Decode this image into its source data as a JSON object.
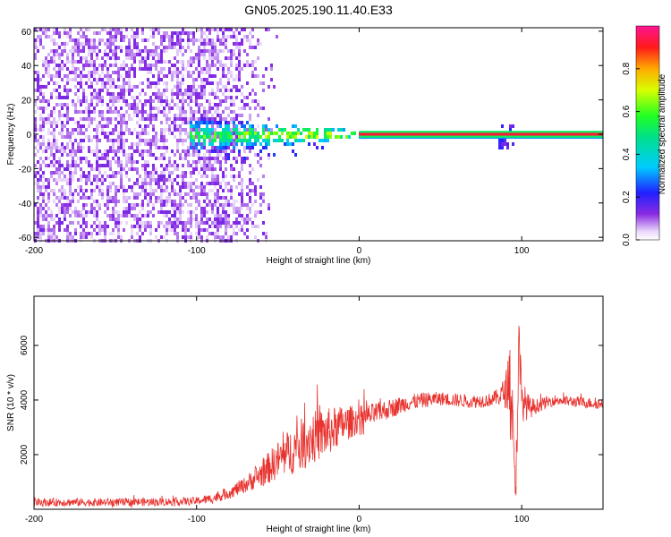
{
  "title": "GN05.2025.190.11.40.E33",
  "chart_data": [
    {
      "type": "heatmap",
      "xlabel": "Height of straight line (km)",
      "ylabel": "Frequency (Hz)",
      "xlim": [
        -200,
        150
      ],
      "ylim": [
        -62,
        62
      ],
      "x_ticks": [
        -200,
        -100,
        0,
        100
      ],
      "y_ticks": [
        -60,
        -40,
        -20,
        0,
        20,
        40,
        60
      ],
      "colorbar": {
        "label": "Normalized spectral amplitude",
        "range": [
          0,
          1
        ],
        "ticks": [
          0.0,
          0.2,
          0.4,
          0.6,
          0.8
        ],
        "tick_labels": [
          "0.0",
          "0.2",
          "0.4",
          "0.6",
          "0.8"
        ]
      },
      "features": [
        {
          "x_range": [
            -200,
            -70
          ],
          "frequency_range": [
            -62,
            62
          ],
          "amplitude": 0.15
        },
        {
          "x_range": [
            -105,
            0
          ],
          "frequency_range": [
            -10,
            8
          ],
          "amplitude": 0.45
        },
        {
          "x_range": [
            0,
            150
          ],
          "frequency_range": [
            -1,
            1
          ],
          "amplitude": 0.95
        },
        {
          "x_range": [
            85,
            95
          ],
          "frequency_range": [
            -8,
            6
          ],
          "amplitude": 0.25
        }
      ]
    },
    {
      "type": "line",
      "xlabel": "Height of straight line (km)",
      "ylabel": "SNR (10 * v/v)",
      "xlim": [
        -200,
        150
      ],
      "ylim": [
        0,
        7800
      ],
      "x_ticks": [
        -200,
        -100,
        0,
        100
      ],
      "y_ticks": [
        2000,
        4000,
        6000
      ],
      "series": [
        {
          "color": "#e8322e",
          "x": [
            -200,
            -180,
            -160,
            -140,
            -120,
            -100,
            -90,
            -80,
            -70,
            -60,
            -50,
            -40,
            -30,
            -20,
            -10,
            0,
            10,
            20,
            30,
            40,
            50,
            60,
            70,
            80,
            85,
            90,
            93,
            95,
            96,
            97,
            98,
            100,
            105,
            110,
            120,
            130,
            140,
            150
          ],
          "y": [
            250,
            260,
            250,
            260,
            270,
            300,
            400,
            600,
            900,
            1300,
            1800,
            2200,
            2600,
            2800,
            3100,
            3300,
            3500,
            3700,
            3900,
            4000,
            4050,
            4000,
            3950,
            4000,
            4100,
            4300,
            5000,
            2000,
            500,
            2500,
            6000,
            4000,
            3700,
            3800,
            4000,
            3950,
            3900,
            3850
          ],
          "noise": [
            150,
            150,
            150,
            150,
            150,
            150,
            180,
            220,
            300,
            500,
            700,
            900,
            1000,
            900,
            700,
            500,
            400,
            350,
            300,
            280,
            250,
            250,
            250,
            250,
            300,
            600,
            1500,
            1500,
            600,
            1500,
            1600,
            800,
            400,
            250,
            200,
            200,
            200,
            200
          ]
        }
      ]
    }
  ]
}
